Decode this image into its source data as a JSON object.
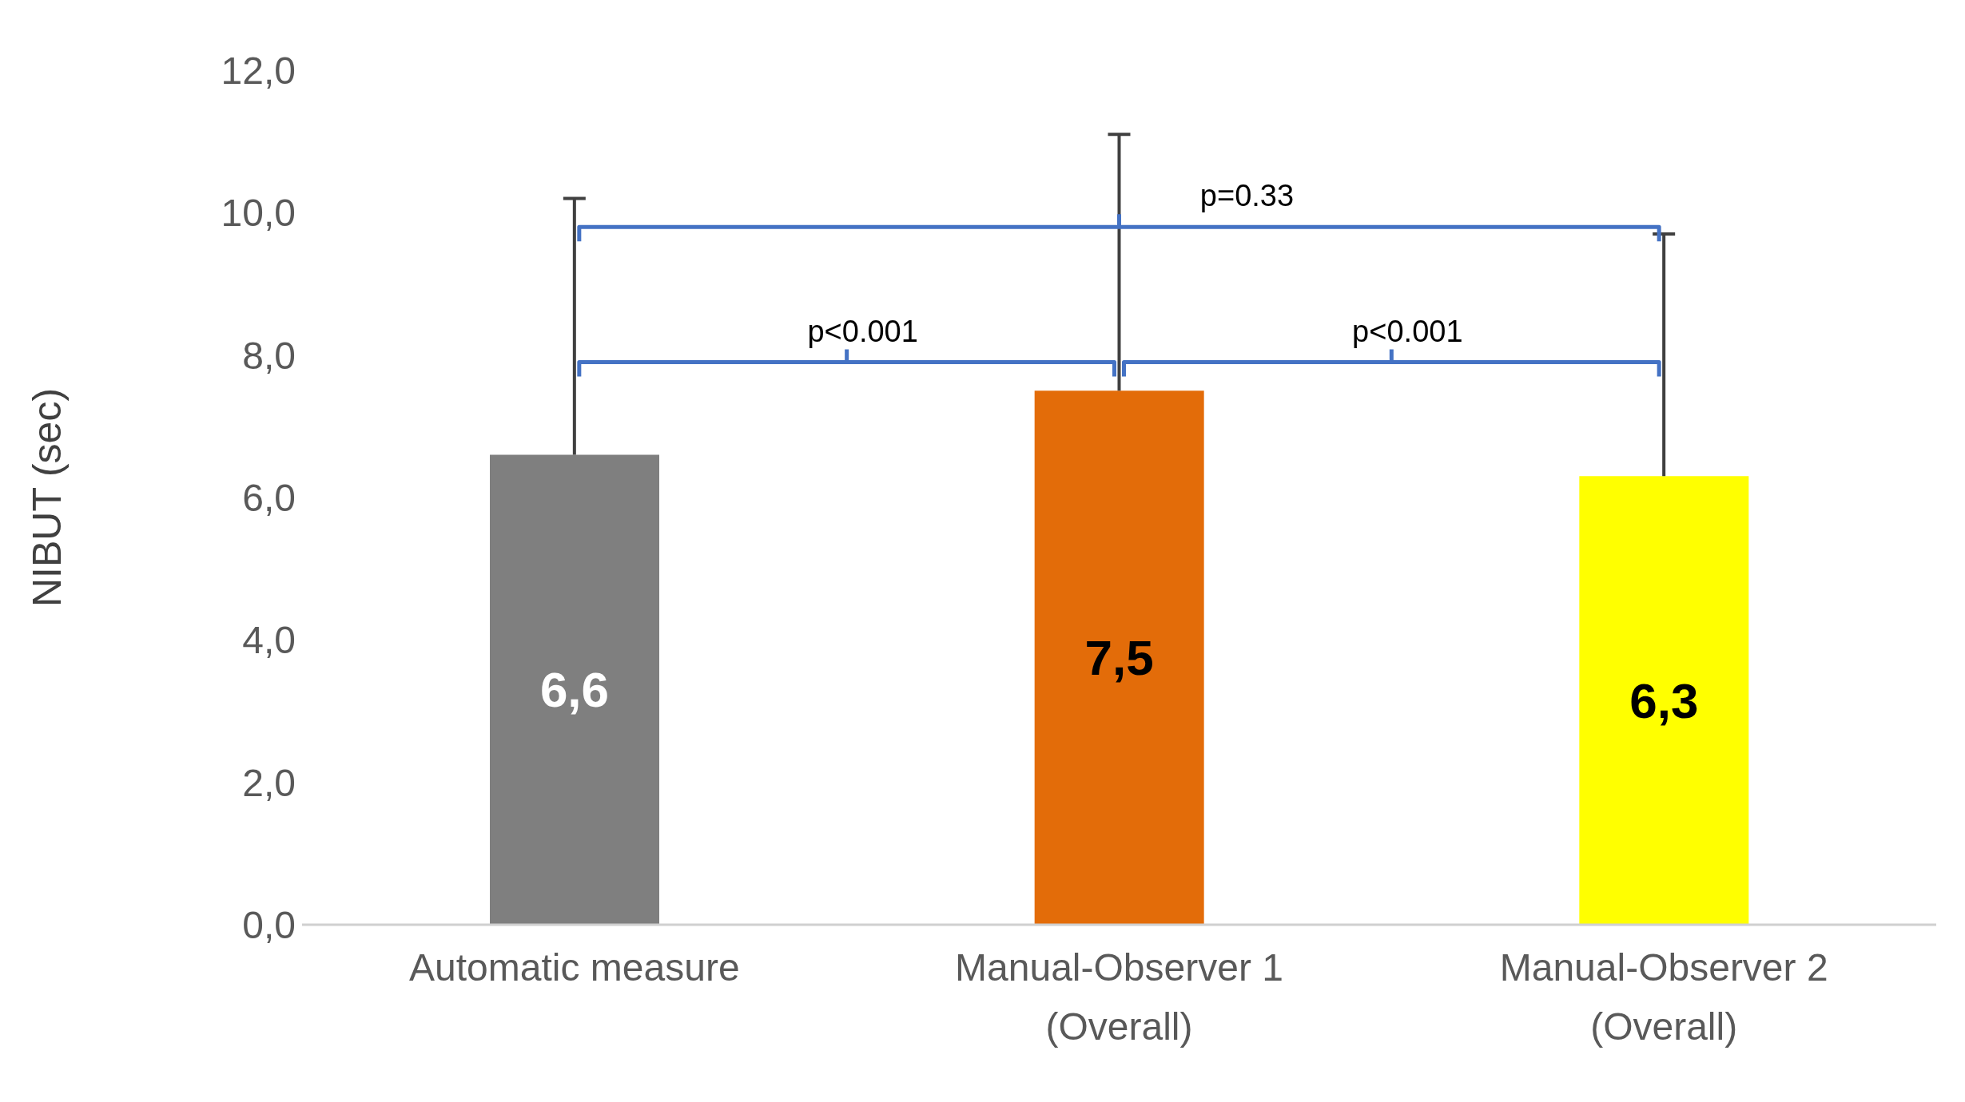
{
  "chart_data": {
    "type": "bar",
    "ylabel": "NIBUT (sec)",
    "categories": [
      "Automatic measure",
      "Manual-Observer 1 (Overall)",
      "Manual-Observer 2 (Overall)"
    ],
    "values": [
      6.6,
      7.5,
      6.3
    ],
    "colors": [
      "#7f7f7f",
      "#e36c09",
      "#ffff00"
    ],
    "errors": [
      [
        6.6,
        10.2
      ],
      [
        7.5,
        11.1
      ],
      [
        6.3,
        9.7
      ]
    ],
    "value_labels": [
      "6,6",
      "7,5",
      "6,3"
    ],
    "ylim": [
      0,
      12
    ],
    "yticks": [
      {
        "value": 0,
        "label": "0,0"
      },
      {
        "value": 2,
        "label": "2,0"
      },
      {
        "value": 4,
        "label": "4,0"
      },
      {
        "value": 6,
        "label": "6,0"
      },
      {
        "value": 8,
        "label": "8,0"
      },
      {
        "value": 10,
        "label": "10,0"
      },
      {
        "value": 12,
        "label": "12,0"
      }
    ],
    "annotations": [
      "p=0.33",
      "p<0.001",
      "p<0.001"
    ],
    "grid": false,
    "legend": false
  }
}
